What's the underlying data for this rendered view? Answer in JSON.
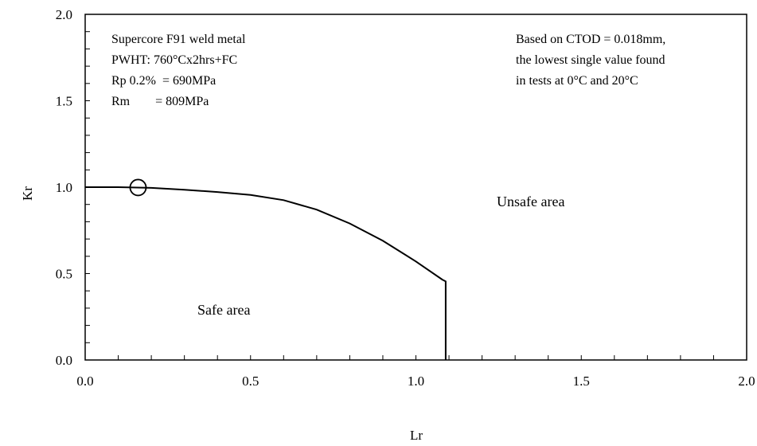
{
  "chart_data": {
    "type": "line",
    "title": "",
    "xlabel": "Lr",
    "ylabel": "Kr",
    "xlim": [
      0,
      2.0
    ],
    "ylim": [
      0,
      2.0
    ],
    "x_ticks": [
      "0.0",
      "0.5",
      "1.0",
      "1.5",
      "2.0"
    ],
    "y_ticks": [
      "0.0",
      "0.5",
      "1.0",
      "1.5",
      "2.0"
    ],
    "x_tick_values": [
      0,
      0.5,
      1.0,
      1.5,
      2.0
    ],
    "y_tick_values": [
      0,
      0.5,
      1.0,
      1.5,
      2.0
    ],
    "grid": false,
    "legend": "none",
    "series": [
      {
        "x": [
          0,
          0.1,
          0.2,
          0.3,
          0.4,
          0.5,
          0.6,
          0.7,
          0.8,
          0.9,
          1.0,
          1.08,
          1.09,
          1.09
        ],
        "y": [
          1.0,
          1.0,
          0.996,
          0.985,
          0.972,
          0.955,
          0.925,
          0.87,
          0.79,
          0.69,
          0.57,
          0.465,
          0.455,
          0.0
        ]
      }
    ],
    "marker_point": {
      "x": 0.16,
      "y": 0.998
    },
    "annotations": {
      "material": [
        "Supercore F91 weld metal",
        "PWHT: 760°Cx2hrs+FC",
        "Rp 0.2%  = 690MPa",
        "Rm        = 809MPa"
      ],
      "basis": [
        "Based on CTOD = 0.018mm,",
        "the lowest single value found",
        "in tests at 0°C and 20°C"
      ],
      "unsafe_label": "Unsafe area",
      "safe_label": "Safe area"
    }
  }
}
